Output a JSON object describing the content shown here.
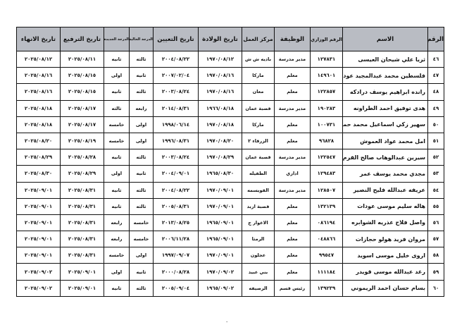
{
  "headers": {
    "no": "الرقم",
    "name": "الاسم",
    "ministry_no": "الرقم الوزاري",
    "job": "الوظيفة",
    "work_center": "مركز العمل",
    "birth_date": "تاريخ الولادة",
    "hire_date": "تاريخ التعيين",
    "current_grade": "الدرجة الحالية",
    "new_grade": "الدرجة الجديدة",
    "promotion_date": "تاريخ الترفيع",
    "end_date": "تاريخ الانهاء"
  },
  "rows": [
    {
      "no": "٤٦",
      "name": "ثريا علي شيحان العيسى",
      "ministry_no": "١٢٧٨٣١",
      "job": "مدير مدرسة",
      "work_center": "باديه ش ش",
      "birth_date": "١٩٧٠/٠٨/١٢",
      "hire_date": "٢٠٠٤/٠٨/٢٢",
      "current_grade": "ثالثه",
      "new_grade": "ثانيه",
      "promotion_date": "٢٠٢٥/٠٨/١١",
      "end_date": "٢٠٢٥/٠٨/١٢"
    },
    {
      "no": "٤٧",
      "name": "فلسطين محمد عبدالمجيد عوده",
      "ministry_no": "١٤٩٦٠١",
      "job": "معلم",
      "work_center": "ماركا",
      "birth_date": "١٩٧٠/٠٨/١٦",
      "hire_date": "٢٠٠٧/٠٢/٠٤",
      "current_grade": "ثانيه",
      "new_grade": "اولى",
      "promotion_date": "٢٠٢٥/٠٨/١٥",
      "end_date": "٢٠٢٥/٠٨/١٦"
    },
    {
      "no": "٤٨",
      "name": "رانده ابراهيم يوسف درادكه",
      "ministry_no": "١٢٢٨٥٧",
      "job": "معلم",
      "work_center": "معان",
      "birth_date": "١٩٧٠/٠٨/١٦",
      "hire_date": "٢٠٠٣/٠٨/٢٤",
      "current_grade": "ثالثه",
      "new_grade": "ثانيه",
      "promotion_date": "٢٠٢٥/٠٨/١٥",
      "end_date": "٢٠٢٥/٠٨/١٦"
    },
    {
      "no": "٤٩",
      "name": "هدى توفيق احمد الطراونه",
      "ministry_no": "١٩٠٢٨٣",
      "job": "مدير مدرسة",
      "work_center": "قصبة عمان",
      "birth_date": "١٩٦٦/٠٨/١٨",
      "hire_date": "٢٠١٤/٠٨/٣١",
      "current_grade": "رابعه",
      "new_grade": "ثالثه",
      "promotion_date": "٢٠٢٥/٠٨/١٧",
      "end_date": "٢٠٢٥/٠٨/١٨"
    },
    {
      "no": "٥٠",
      "name": "سهير زكي اسماعيل محمد حمر",
      "ministry_no": "١٠٠٧٣١",
      "job": "معلم",
      "work_center": "ماركا",
      "birth_date": "١٩٧٠/٠٨/١٨",
      "hire_date": "١٩٩٨/٠٦/١٤",
      "current_grade": "اولى",
      "new_grade": "خامسه",
      "promotion_date": "٢٠٢٥/٠٨/١٧",
      "end_date": "٢٠٢٥/٠٨/١٨"
    },
    {
      "no": "٥١",
      "name": "امل محمد عواد العموش",
      "ministry_no": "٩٦٨٢٨",
      "job": "معلم",
      "work_center": "الزرقاء ٢",
      "birth_date": "١٩٧٠/٠٨/٢٠",
      "hire_date": "١٩٩٦/٠٨/٣١",
      "current_grade": "اولى",
      "new_grade": "خامسه",
      "promotion_date": "٢٠٢٥/٠٨/١٩",
      "end_date": "٢٠٢٥/٠٨/٢٠"
    },
    {
      "no": "٥٢",
      "name": "سيرين عبدالوهاب صالح القرم",
      "ministry_no": "١٢٢٥٤٧",
      "job": "مدير مدرسة",
      "work_center": "قصبة عمان",
      "birth_date": "١٩٧٠/٠٨/٢٩",
      "hire_date": "٢٠٠٣/٠٨/٢٤",
      "current_grade": "ثالثه",
      "new_grade": "ثانيه",
      "promotion_date": "٢٠٢٥/٠٨/٢٨",
      "end_date": "٢٠٢٥/٠٨/٢٩"
    },
    {
      "no": "٥٣",
      "name": "مجدي محمد يوسف عمر",
      "ministry_no": "١٢٩٤٨٣",
      "job": "اداري",
      "work_center": "الطفيله",
      "birth_date": "١٩٦٥/٠٨/٣٠",
      "hire_date": "٢٠٠٤/٠٩/٠١",
      "current_grade": "ثانيه",
      "new_grade": "اولى",
      "promotion_date": "٢٠٢٥/٠٨/٢٩",
      "end_date": "٢٠٢٥/٠٨/٣٠"
    },
    {
      "no": "٥٤",
      "name": "عريفه عبدالله فليح النصير",
      "ministry_no": "١٢٨٥٠٧",
      "job": "مدير مدرسة",
      "work_center": "القويسمه",
      "birth_date": "١٩٧٠/٠٩/٠١",
      "hire_date": "٢٠٠٤/٠٨/٢٢",
      "current_grade": "ثالثه",
      "new_grade": "ثانيه",
      "promotion_date": "٢٠٢٥/٠٨/٣١",
      "end_date": "٢٠٢٥/٠٩/٠١"
    },
    {
      "no": "٥٥",
      "name": "هاله سليم موسى عودات",
      "ministry_no": "١٣٢١٣٩",
      "job": "معلم",
      "work_center": "قصبة اربد",
      "birth_date": "١٩٧٠/٠٩/٠١",
      "hire_date": "٢٠٠٥/٠٨/٣١",
      "current_grade": "ثالثه",
      "new_grade": "ثانيه",
      "promotion_date": "٢٠٢٥/٠٨/٣١",
      "end_date": "٢٠٢٥/٠٩/٠١"
    },
    {
      "no": "٥٦",
      "name": "واصل فلاح عذريه الشوابره",
      "ministry_no": "٠٨٦١٩٤",
      "job": "معلم",
      "work_center": "الاغوار ج",
      "birth_date": "١٩٦٥/٠٩/٠١",
      "hire_date": "٢٠١٣/٠٨/٢٥",
      "current_grade": "خامسه",
      "new_grade": "رابعه",
      "promotion_date": "٢٠٢٥/٠٨/٣١",
      "end_date": "٢٠٢٥/٠٩/٠١"
    },
    {
      "no": "٥٧",
      "name": "مروان فريد هولو حجازات",
      "ministry_no": "٠٤٨٨٦٦",
      "job": "معلم",
      "work_center": "الرمثا",
      "birth_date": "١٩٦٥/٠٩/٠١",
      "hire_date": "٢٠٠٦/١١/٢٨",
      "current_grade": "خامسه",
      "new_grade": "رابعه",
      "promotion_date": "٢٠٢٥/٠٨/٣١",
      "end_date": "٢٠٢٥/٠٩/٠١"
    },
    {
      "no": "٥٨",
      "name": "اروى خليل موسى اسويد",
      "ministry_no": "٩٩٥٤٧",
      "job": "معلم",
      "work_center": "عجلون",
      "birth_date": "١٩٧٠/٠٩/٠١",
      "hire_date": "١٩٩٧/٠٩/٠٧",
      "current_grade": "اولى",
      "new_grade": "خامسه",
      "promotion_date": "٢٠٢٥/٠٨/٣١",
      "end_date": "٢٠٢٥/٠٩/٠١"
    },
    {
      "no": "٥٩",
      "name": "رغد عبدالله موسى قويدر",
      "ministry_no": "١١١١٨٤",
      "job": "معلم",
      "work_center": "بني عبيد",
      "birth_date": "١٩٧٠/٠٩/٠٢",
      "hire_date": "٢٠٠٠/٠٨/٢٨",
      "current_grade": "ثانيه",
      "new_grade": "اولى",
      "promotion_date": "٢٠٢٥/٠٩/٠١",
      "end_date": "٢٠٢٥/٠٩/٠٢"
    },
    {
      "no": "٦٠",
      "name": "بسام حسان احمد الريموني",
      "ministry_no": "١٣٩٢٣٩",
      "job": "رئيس قسم",
      "work_center": "الرصيفه",
      "birth_date": "١٩٦٥/٠٩/٠٢",
      "hire_date": "٢٠٠٥/٠٩/٠٤",
      "current_grade": "ثالثه",
      "new_grade": "ثانيه",
      "promotion_date": "٢٠٢٥/٠٩/٠١",
      "end_date": "٢٠٢٥/٠٩/٠٢"
    }
  ],
  "footer_mark": "٠"
}
